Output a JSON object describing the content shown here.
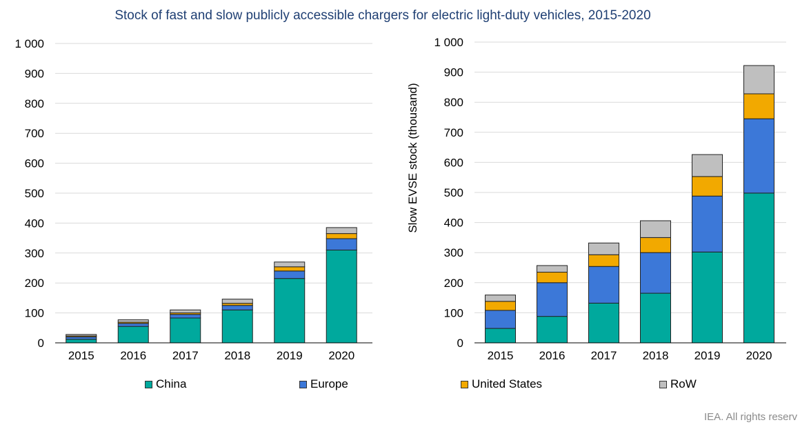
{
  "title": "Stock of fast and slow publicly accessible chargers for electric light-duty vehicles, 2015-2020",
  "credit": "IEA. All rights reserv",
  "colors": {
    "China": "#00a99d",
    "Europe": "#3c78d8",
    "United States": "#f2a900",
    "RoW": "#bfbfbf",
    "grid": "#d9d9d9"
  },
  "legend": [
    {
      "name": "China",
      "color": "#00a99d"
    },
    {
      "name": "Europe",
      "color": "#3c78d8"
    },
    {
      "name": "United States",
      "color": "#f2a900"
    },
    {
      "name": "RoW",
      "color": "#bfbfbf"
    }
  ],
  "chart_data": [
    {
      "type": "bar",
      "stacked": true,
      "title": "",
      "xlabel": "",
      "ylabel": "",
      "categories": [
        "2015",
        "2016",
        "2017",
        "2018",
        "2019",
        "2020"
      ],
      "ylim": [
        0,
        1000
      ],
      "yticks": [
        0,
        100,
        200,
        300,
        400,
        500,
        600,
        700,
        800,
        900,
        1000
      ],
      "ytick_labels": [
        "0",
        "100",
        "200",
        "300",
        "400",
        "500",
        "600",
        "700",
        "800",
        "900",
        "1 000"
      ],
      "grid": true,
      "series": [
        {
          "name": "China",
          "values": [
            12,
            55,
            83,
            110,
            215,
            310
          ]
        },
        {
          "name": "Europe",
          "values": [
            8,
            10,
            12,
            15,
            25,
            38
          ]
        },
        {
          "name": "United States",
          "values": [
            3,
            4,
            5,
            7,
            14,
            17
          ]
        },
        {
          "name": "RoW",
          "values": [
            5,
            8,
            10,
            14,
            16,
            20
          ]
        }
      ]
    },
    {
      "type": "bar",
      "stacked": true,
      "title": "",
      "xlabel": "",
      "ylabel": "Slow EVSE stock (thousand)",
      "categories": [
        "2015",
        "2016",
        "2017",
        "2018",
        "2019",
        "2020"
      ],
      "ylim": [
        0,
        1000
      ],
      "yticks": [
        0,
        100,
        200,
        300,
        400,
        500,
        600,
        700,
        800,
        900,
        1000
      ],
      "ytick_labels": [
        "0",
        "100",
        "200",
        "300",
        "400",
        "500",
        "600",
        "700",
        "800",
        "900",
        "1 000"
      ],
      "grid": true,
      "series": [
        {
          "name": "China",
          "values": [
            48,
            88,
            132,
            165,
            302,
            498
          ]
        },
        {
          "name": "Europe",
          "values": [
            60,
            112,
            122,
            135,
            186,
            247
          ]
        },
        {
          "name": "United States",
          "values": [
            30,
            35,
            39,
            50,
            65,
            83
          ]
        },
        {
          "name": "RoW",
          "values": [
            21,
            22,
            39,
            56,
            73,
            94
          ]
        }
      ]
    }
  ]
}
